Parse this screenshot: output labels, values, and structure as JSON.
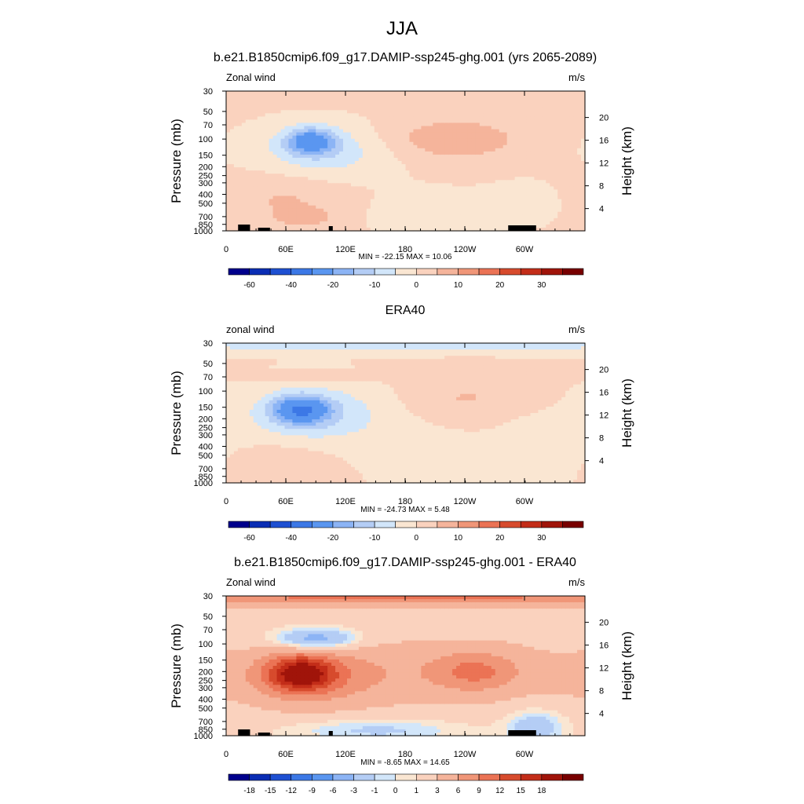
{
  "figure_title": "JJA",
  "colors": {
    "wind": [
      "#00008c",
      "#0a2db4",
      "#1e50d2",
      "#3c78e6",
      "#5a96f0",
      "#8cb4f5",
      "#b4cdf5",
      "#d2e6fa",
      "#fae6d2",
      "#fad2be",
      "#f5b49b",
      "#f09678",
      "#eb7355",
      "#d74b2d",
      "#c32d19",
      "#a0140a",
      "#780000"
    ],
    "diff": [
      "#00008c",
      "#0a2db4",
      "#1e50d2",
      "#3c78e6",
      "#5a96f0",
      "#8cb4f5",
      "#b4cdf5",
      "#d2e6fa",
      "#fae6d2",
      "#fad2be",
      "#f5b49b",
      "#f09678",
      "#eb7355",
      "#d74b2d",
      "#c32d19",
      "#a0140a",
      "#780000"
    ]
  },
  "chart_data": [
    {
      "type": "heatmap",
      "title": "b.e21.B1850cmip6.f09_g17.DAMIP-ssp245-ghg.001 (yrs 2065-2089)",
      "left_label": "Zonal wind",
      "right_label": "m/s",
      "ylabel": "Pressure (mb)",
      "ylabel_right": "Height (km)",
      "x_ticks": [
        "0",
        "60E",
        "120E",
        "180",
        "120W",
        "60W"
      ],
      "y_ticks": [
        "30",
        "50",
        "70",
        "100",
        "150",
        "200",
        "250",
        "300",
        "400",
        "500",
        "700",
        "850",
        "1000"
      ],
      "y_right_ticks": [
        "4",
        "8",
        "12",
        "16",
        "20"
      ],
      "stats": "MIN = -22.15  MAX =  10.06",
      "colorbar_labels": [
        "-60",
        "-40",
        "-20",
        "-10",
        "0",
        "10",
        "20",
        "30"
      ],
      "fields": [
        {
          "lon": 85,
          "lev": 105,
          "amp": -22,
          "wlon": 18,
          "wlev": 0.23
        },
        {
          "lon": 95,
          "lev": 140,
          "amp": -9,
          "wlon": 45,
          "wlev": 0.45
        },
        {
          "lon": 230,
          "lev": 100,
          "amp": 9,
          "wlon": 45,
          "wlev": 0.35
        },
        {
          "lon": 60,
          "lev": 450,
          "amp": 5,
          "wlon": 40,
          "wlev": 0.5
        },
        {
          "lon": 80,
          "lev": 720,
          "amp": 6,
          "wlon": 18,
          "wlev": 0.15
        },
        {
          "lon": 200,
          "lev": 650,
          "amp": -3,
          "wlon": 40,
          "wlev": 0.4
        },
        {
          "lon": 300,
          "lev": 500,
          "amp": -2,
          "wlon": 30,
          "wlev": 0.4
        }
      ],
      "base": 0.5
    },
    {
      "type": "heatmap",
      "title": "ERA40",
      "left_label": "zonal wind",
      "right_label": "m/s",
      "ylabel": "Pressure (mb)",
      "ylabel_right": "Height (km)",
      "x_ticks": [
        "0",
        "60E",
        "120E",
        "180",
        "120W",
        "60W"
      ],
      "y_ticks": [
        "30",
        "50",
        "70",
        "100",
        "150",
        "200",
        "250",
        "300",
        "400",
        "500",
        "700",
        "850",
        "1000"
      ],
      "y_right_ticks": [
        "4",
        "8",
        "12",
        "16",
        "20"
      ],
      "stats": "MIN = -24.73  MAX =   5.48",
      "colorbar_labels": [
        "-60",
        "-40",
        "-20",
        "-10",
        "0",
        "10",
        "20",
        "30"
      ],
      "fields": [
        {
          "lon": 75,
          "lev": 160,
          "amp": -24,
          "wlon": 20,
          "wlev": 0.25
        },
        {
          "lon": 90,
          "lev": 180,
          "amp": -10,
          "wlon": 50,
          "wlev": 0.5
        },
        {
          "lon": 180,
          "lev": 30,
          "amp": -8,
          "wlon": 400,
          "wlev": 0.15
        },
        {
          "lon": 240,
          "lev": 120,
          "amp": 5,
          "wlon": 45,
          "wlev": 0.4
        },
        {
          "lon": 90,
          "lev": 70,
          "amp": 3,
          "wlon": 40,
          "wlev": 0.1
        },
        {
          "lon": 60,
          "lev": 650,
          "amp": 4,
          "wlon": 30,
          "wlev": 0.4
        },
        {
          "lon": 200,
          "lev": 500,
          "amp": -2,
          "wlon": 40,
          "wlev": 0.6
        },
        {
          "lon": 310,
          "lev": 400,
          "amp": -3,
          "wlon": 30,
          "wlev": 0.6
        }
      ],
      "base": 0.3
    },
    {
      "type": "heatmap",
      "title": "b.e21.B1850cmip6.f09_g17.DAMIP-ssp245-ghg.001 - ERA40",
      "left_label": "Zonal wind",
      "right_label": "m/s",
      "ylabel": "Pressure (mb)",
      "ylabel_right": "Height (km)",
      "x_ticks": [
        "0",
        "60E",
        "120E",
        "180",
        "120W",
        "60W"
      ],
      "y_ticks": [
        "30",
        "50",
        "70",
        "100",
        "150",
        "200",
        "250",
        "300",
        "400",
        "500",
        "700",
        "850",
        "1000"
      ],
      "y_right_ticks": [
        "4",
        "8",
        "12",
        "16",
        "20"
      ],
      "stats": "MIN =  -8.65  MAX =  14.65",
      "colorbar_labels": [
        "-18",
        "-15",
        "-12",
        "-9",
        "-6",
        "-3",
        "-1",
        "0",
        "1",
        "3",
        "6",
        "9",
        "12",
        "15",
        "18"
      ],
      "fields": [
        {
          "lon": 180,
          "lev": 30,
          "amp": 8,
          "wlon": 400,
          "wlev": 0.18
        },
        {
          "lon": 90,
          "lev": 90,
          "amp": -7,
          "wlon": 30,
          "wlev": 0.2
        },
        {
          "lon": 75,
          "lev": 210,
          "amp": 14,
          "wlon": 22,
          "wlev": 0.3
        },
        {
          "lon": 80,
          "lev": 230,
          "amp": 6,
          "wlon": 50,
          "wlev": 0.5
        },
        {
          "lon": 250,
          "lev": 200,
          "amp": 6,
          "wlon": 30,
          "wlev": 0.35
        },
        {
          "lon": 200,
          "lev": 200,
          "amp": 3,
          "wlon": 120,
          "wlev": 0.6
        },
        {
          "lon": 150,
          "lev": 870,
          "amp": -3,
          "wlon": 60,
          "wlev": 0.2
        },
        {
          "lon": 310,
          "lev": 800,
          "amp": -4,
          "wlon": 20,
          "wlev": 0.3
        }
      ],
      "base": 1.5
    }
  ]
}
